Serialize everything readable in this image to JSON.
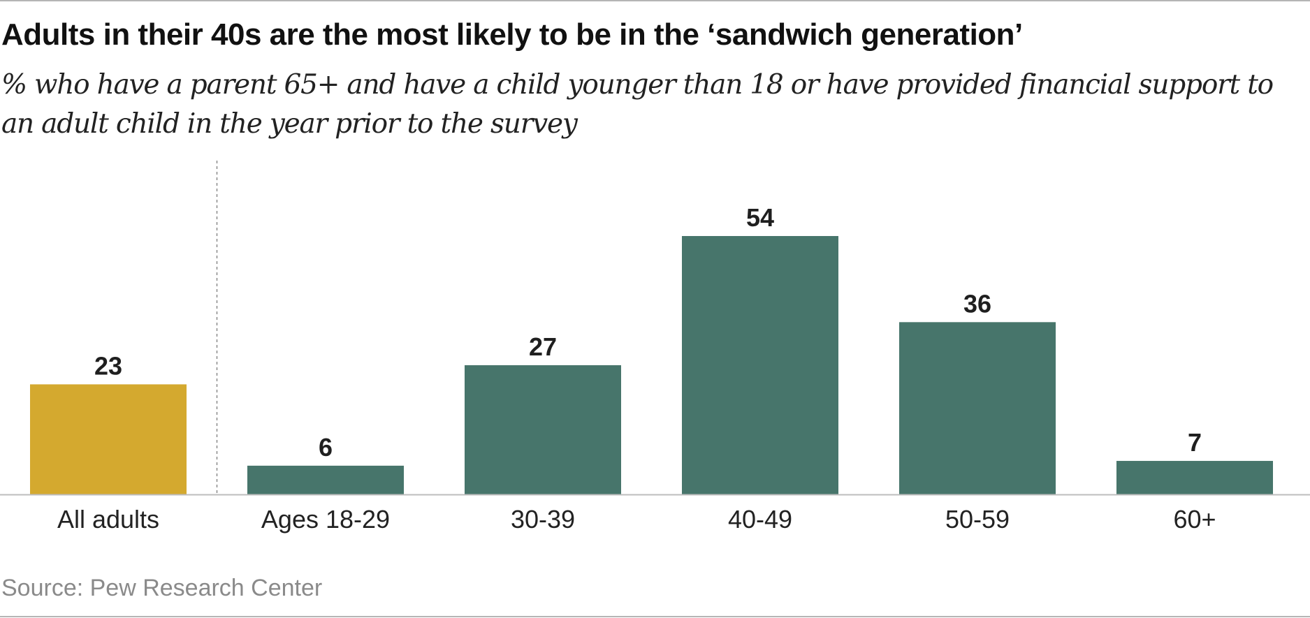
{
  "title": "Adults in their 40s are the most likely to be in the ‘sandwich generation’",
  "subtitle": "% who have a parent 65+ and have a child younger than 18 or have provided financial support to an adult child in the year prior to the survey",
  "source": "Source: Pew Research Center",
  "colors": {
    "highlight": "#D4A92F",
    "bar": "#47756B",
    "baseline": "#bdbdbd",
    "divider": "#8a8a8a",
    "label": "#222222",
    "value": "#1f1f1f"
  },
  "chart_data": {
    "type": "bar",
    "categories": [
      "All adults",
      "Ages 18-29",
      "30-39",
      "40-49",
      "50-59",
      "60+"
    ],
    "values": [
      23,
      6,
      27,
      54,
      36,
      7
    ],
    "highlight_index": 0,
    "divider_after_index": 0,
    "data_labels": true,
    "grid": false,
    "title": "Adults in their 40s are the most likely to be in the ‘sandwich generation’",
    "xlabel": "",
    "ylabel": "",
    "ylim": [
      0,
      54
    ]
  }
}
